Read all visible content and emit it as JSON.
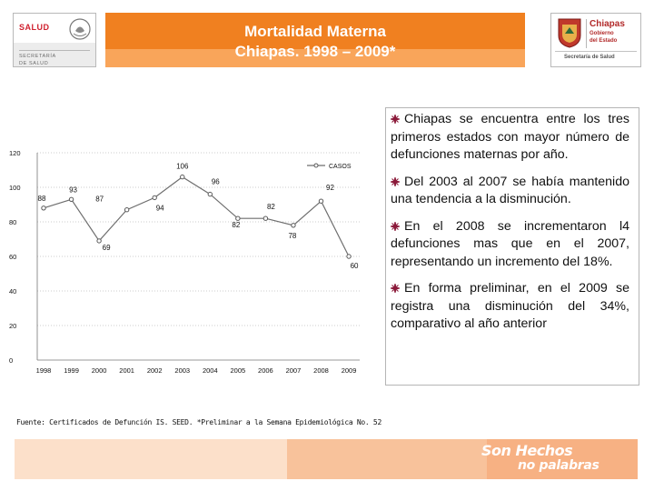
{
  "header": {
    "left_logo": {
      "name": "SALUD",
      "department_line1": "SECRETARÍA",
      "department_line2": "DE SALUD"
    },
    "title_line1": "Mortalidad Materna",
    "title_line2": "Chiapas. 1998 – 2009*",
    "right_logo": {
      "state": "Chiapas",
      "gov_line1": "Gobierno",
      "gov_line2": "del Estado",
      "department": "Secretaría de Salud"
    }
  },
  "chart_data": {
    "type": "line",
    "categories": [
      "1998",
      "1999",
      "2000",
      "2001",
      "2002",
      "2003",
      "2004",
      "2005",
      "2006",
      "2007",
      "2008",
      "2009"
    ],
    "series": [
      {
        "name": "CASOS",
        "values": [
          88,
          93,
          69,
          87,
          94,
          106,
          96,
          82,
          82,
          78,
          92,
          60
        ]
      }
    ],
    "ylim": [
      0,
      120
    ],
    "yticks": [
      "0",
      "20",
      "40",
      "60",
      "80",
      "100",
      "120"
    ],
    "legend": "top-right",
    "title": "",
    "xlabel": "",
    "ylabel": ""
  },
  "source_note": "Fuente: Certificados de Defunción IS. SEED. *Preliminar a la Semana Epidemiológica No. 52",
  "bullets": [
    "Chiapas se encuentra entre los tres primeros estados con mayor número de defunciones maternas por año.",
    "Del 2003 al 2007 se había mantenido una tendencia a la disminución.",
    "En el 2008 se incrementaron l4 defunciones mas que en el 2007, representando un incremento del 18%.",
    "En forma preliminar, en el 2009 se registra una disminución del 34%, comparativo al año anterior"
  ],
  "footer": {
    "slogan_line1": "Son Hechos",
    "slogan_line2": "no palabras"
  },
  "colors": {
    "orange": "#f08020",
    "bullet": "#8b1a3a",
    "line": "#6e6e6e"
  }
}
